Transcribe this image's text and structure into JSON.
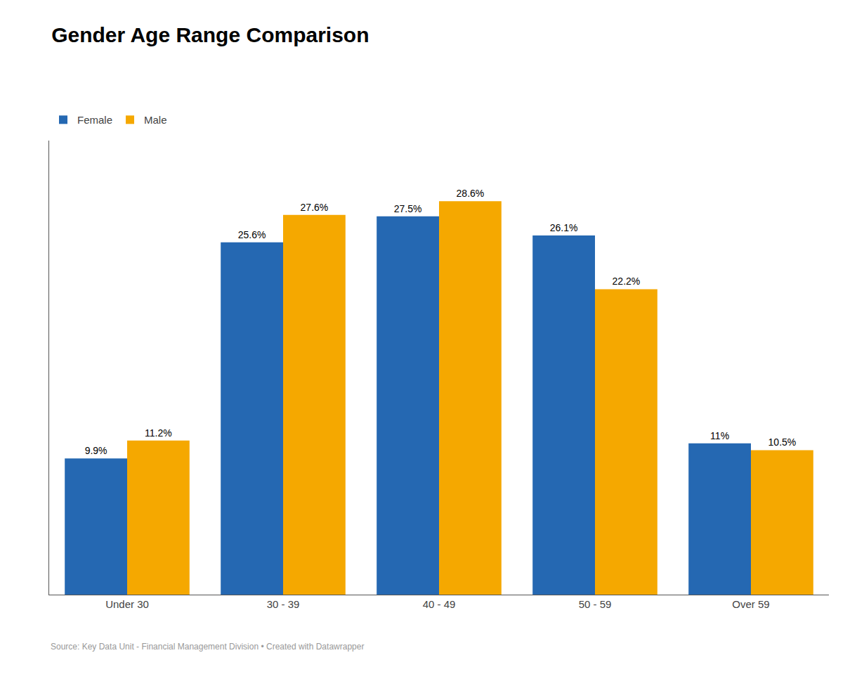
{
  "chart_data": {
    "type": "bar",
    "title": "Gender Age Range Comparison",
    "categories": [
      "Under 30",
      "30 - 39",
      "40 - 49",
      "50 - 59",
      "Over 59"
    ],
    "series": [
      {
        "name": "Female",
        "color": "#2568b2",
        "values": [
          9.9,
          25.6,
          27.5,
          26.1,
          11.0
        ],
        "value_labels": [
          "9.9%",
          "25.6%",
          "27.5%",
          "26.1%",
          "11%"
        ]
      },
      {
        "name": "Male",
        "color": "#f5a800",
        "values": [
          11.2,
          27.6,
          28.6,
          22.2,
          10.5
        ],
        "value_labels": [
          "11.2%",
          "27.6%",
          "28.6%",
          "22.2%",
          "10.5%"
        ]
      }
    ],
    "ylim": [
      0,
      33
    ],
    "grid": false,
    "legend": "upper left",
    "data_labels": true,
    "tick_labels": "x",
    "annotations": [
      "Source: Key Data Unit - Financial Management Division • Created with Datawrapper"
    ]
  }
}
